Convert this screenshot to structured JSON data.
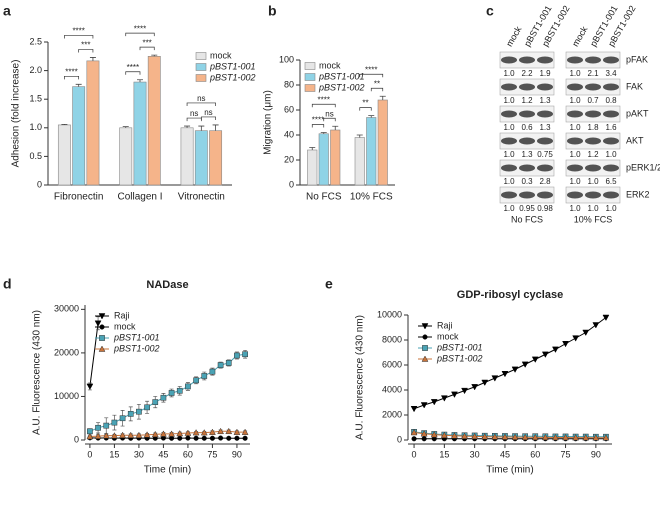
{
  "chart_data": [
    {
      "type": "bar",
      "panel": "a",
      "ylabel": "Adhesion (fold increase)",
      "categories": [
        "Fibronectin",
        "Collagen I",
        "Vitronectin"
      ],
      "series": [
        {
          "name": "mock",
          "color": "#e6e6e6",
          "values": [
            1.05,
            1.0,
            1.0
          ],
          "errors": [
            0.01,
            0.02,
            0.03
          ]
        },
        {
          "name": "pBST1-001",
          "color": "#8fd3e6",
          "values": [
            1.72,
            1.8,
            0.95
          ],
          "errors": [
            0.04,
            0.04,
            0.08
          ]
        },
        {
          "name": "pBST1-002",
          "color": "#f5b48a",
          "values": [
            2.17,
            2.25,
            0.95
          ],
          "errors": [
            0.06,
            0.02,
            0.1
          ]
        }
      ],
      "ylim": [
        0,
        2.5
      ],
      "yticks": [
        0,
        0.5,
        {
          "value": 1,
          "label": "1.0"
        },
        1.5,
        {
          "value": 2,
          "label": "2.0"
        },
        2.5
      ],
      "annotations": [
        "****",
        "***",
        "****",
        "****",
        "***",
        "****",
        "ns",
        "ns",
        "ns"
      ]
    },
    {
      "type": "bar",
      "panel": "b",
      "ylabel": "Migration (μm)",
      "categories": [
        "No FCS",
        "10% FCS"
      ],
      "series": [
        {
          "name": "mock",
          "color": "#e6e6e6",
          "values": [
            28,
            38
          ],
          "errors": [
            2,
            2
          ]
        },
        {
          "name": "pBST1-001",
          "color": "#8fd3e6",
          "values": [
            41,
            54
          ],
          "errors": [
            1,
            1.5
          ]
        },
        {
          "name": "pBST1-002",
          "color": "#f5b48a",
          "values": [
            44,
            68
          ],
          "errors": [
            3,
            3
          ]
        }
      ],
      "ylim": [
        0,
        100
      ],
      "yticks": [
        0,
        20,
        40,
        60,
        80,
        100
      ],
      "annotations": [
        "****",
        "ns",
        "****",
        "**",
        "**",
        "****"
      ]
    },
    {
      "type": "blot",
      "panel": "c",
      "lanes": [
        "mock",
        "pBST1-001",
        "pBST1-002"
      ],
      "groups": [
        "No FCS",
        "10% FCS"
      ],
      "rows": [
        {
          "name": "pFAK",
          "values": [
            [
              "1.0",
              "2.2",
              "1.9"
            ],
            [
              "1.0",
              "2.1",
              "3.4"
            ]
          ]
        },
        {
          "name": "FAK",
          "values": [
            [
              "1.0",
              "1.2",
              "1.3"
            ],
            [
              "1.0",
              "0.7",
              "0.8"
            ]
          ]
        },
        {
          "name": "pAKT",
          "values": [
            [
              "1.0",
              "0.6",
              "1.3"
            ],
            [
              "1.0",
              "1.8",
              "1.6"
            ]
          ]
        },
        {
          "name": "AKT",
          "values": [
            [
              "1.0",
              "1.3",
              "0.75"
            ],
            [
              "1.0",
              "1.2",
              "1.0"
            ]
          ]
        },
        {
          "name": "pERK1/2",
          "values": [
            [
              "1.0",
              "0.3",
              "2.8"
            ],
            [
              "1.0",
              "1.0",
              "6.5"
            ]
          ]
        },
        {
          "name": "ERK2",
          "values": [
            [
              "1.0",
              "0.95",
              "0.98"
            ],
            [
              "1.0",
              "1.0",
              "1.0"
            ]
          ]
        }
      ]
    },
    {
      "type": "line",
      "panel": "d",
      "title": "NADase",
      "xlabel": "Time (min)",
      "ylabel": "A.U. Fluorescence (430 nm)",
      "x": [
        0,
        5,
        10,
        15,
        20,
        25,
        30,
        35,
        40,
        45,
        50,
        55,
        60,
        65,
        70,
        75,
        80,
        85,
        90,
        95
      ],
      "series": [
        {
          "name": "Raji",
          "color": "#000000",
          "marker": "triangle-down",
          "values": [
            12300,
            26800,
            null,
            null,
            null,
            null,
            null,
            null,
            null,
            null,
            null,
            null,
            null,
            null,
            null,
            null,
            null,
            null,
            null,
            null
          ],
          "errors": [
            800,
            1500,
            null,
            null,
            null,
            null,
            null,
            null,
            null,
            null,
            null,
            null,
            null,
            null,
            null,
            null,
            null,
            null,
            null,
            null
          ]
        },
        {
          "name": "mock",
          "color": "#000000",
          "marker": "circle",
          "values": [
            500,
            450,
            450,
            400,
            450,
            400,
            450,
            400,
            400,
            450,
            400,
            400,
            450,
            400,
            400,
            400,
            450,
            400,
            400,
            400
          ]
        },
        {
          "name": "pBST1-001",
          "color": "#4aa3b5",
          "marker": "square",
          "values": [
            2000,
            2800,
            3300,
            4000,
            5000,
            6000,
            6500,
            7500,
            8700,
            9700,
            10800,
            11300,
            12300,
            13700,
            14700,
            15700,
            17200,
            17700,
            19400,
            19700
          ],
          "errors": [
            600,
            1200,
            1800,
            1700,
            1800,
            1600,
            1700,
            1400,
            1300,
            1000,
            900,
            1000,
            900,
            800,
            900,
            800,
            700,
            700,
            800,
            900
          ]
        },
        {
          "name": "pBST1-002",
          "color": "#c8733a",
          "marker": "triangle-up",
          "values": [
            800,
            900,
            1000,
            1000,
            1100,
            1100,
            1100,
            1200,
            1300,
            1400,
            1400,
            1500,
            1600,
            1700,
            1700,
            1800,
            2000,
            2000,
            1800,
            1800
          ],
          "errors": [
            300,
            300,
            300,
            300,
            300,
            300,
            300,
            300,
            300,
            300,
            300,
            300,
            300,
            300,
            300,
            300,
            300,
            300,
            300,
            300
          ]
        }
      ],
      "xlim": [
        -3,
        98
      ],
      "xticks": [
        0,
        15,
        30,
        45,
        60,
        75,
        90
      ],
      "ylim": [
        0,
        31000
      ],
      "yticks": [
        0,
        10000,
        20000,
        30000
      ]
    },
    {
      "type": "line",
      "panel": "e",
      "title": "GDP-ribosyl cyclase",
      "xlabel": "Time (min)",
      "ylabel": "A.U. Fluorescence (430 nm)",
      "x": [
        0,
        5,
        10,
        15,
        20,
        25,
        30,
        35,
        40,
        45,
        50,
        55,
        60,
        65,
        70,
        75,
        80,
        85,
        90,
        95
      ],
      "series": [
        {
          "name": "Raji",
          "color": "#000000",
          "marker": "triangle-down",
          "values": [
            2500,
            2800,
            3050,
            3350,
            3650,
            3950,
            4250,
            4600,
            4950,
            5300,
            5650,
            6050,
            6450,
            6850,
            7250,
            7700,
            8150,
            8600,
            9200,
            9800
          ]
        },
        {
          "name": "mock",
          "color": "#000000",
          "marker": "circle",
          "values": [
            100,
            100,
            100,
            100,
            100,
            100,
            100,
            100,
            100,
            100,
            100,
            100,
            100,
            100,
            100,
            100,
            100,
            100,
            100,
            100
          ]
        },
        {
          "name": "pBST1-001",
          "color": "#4aa3b5",
          "marker": "square",
          "values": [
            650,
            550,
            480,
            430,
            400,
            380,
            360,
            340,
            330,
            320,
            310,
            300,
            300,
            290,
            280,
            280,
            270,
            270,
            260,
            260
          ]
        },
        {
          "name": "pBST1-002",
          "color": "#c8733a",
          "marker": "triangle-up",
          "values": [
            600,
            500,
            430,
            380,
            340,
            310,
            290,
            270,
            250,
            240,
            230,
            220,
            210,
            210,
            200,
            200,
            190,
            190,
            180,
            180
          ]
        }
      ],
      "xlim": [
        -3,
        98
      ],
      "xticks": [
        0,
        15,
        30,
        45,
        60,
        75,
        90
      ],
      "ylim": [
        0,
        10000
      ],
      "yticks": [
        0,
        2000,
        4000,
        6000,
        8000,
        10000
      ]
    }
  ]
}
